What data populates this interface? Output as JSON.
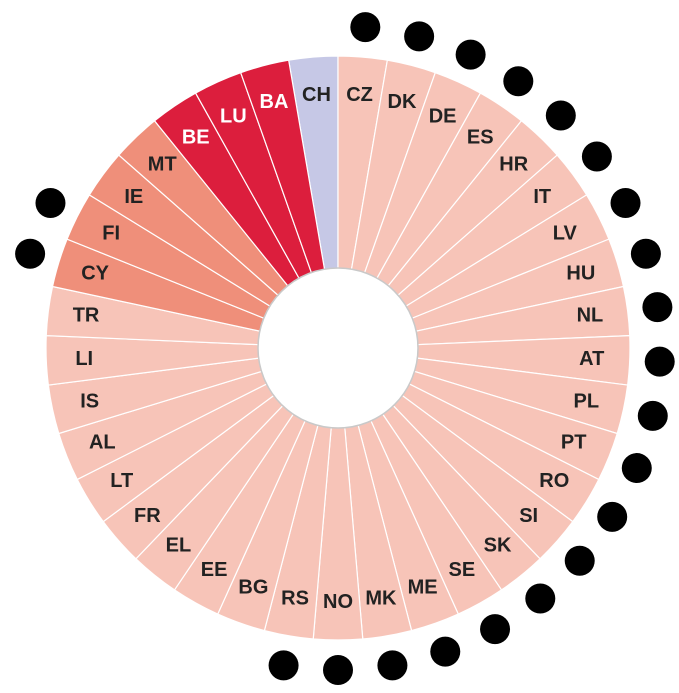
{
  "chart_data": {
    "type": "pie",
    "segments": [
      {
        "code": "CH",
        "group": "lilac"
      },
      {
        "code": "CZ",
        "group": "pale",
        "dot": true
      },
      {
        "code": "DK",
        "group": "pale",
        "dot": true
      },
      {
        "code": "DE",
        "group": "pale",
        "dot": true
      },
      {
        "code": "ES",
        "group": "pale",
        "dot": true
      },
      {
        "code": "HR",
        "group": "pale",
        "dot": true
      },
      {
        "code": "IT",
        "group": "pale",
        "dot": true
      },
      {
        "code": "LV",
        "group": "pale",
        "dot": true
      },
      {
        "code": "HU",
        "group": "pale",
        "dot": true
      },
      {
        "code": "NL",
        "group": "pale",
        "dot": true
      },
      {
        "code": "AT",
        "group": "pale",
        "dot": true
      },
      {
        "code": "PL",
        "group": "pale",
        "dot": true
      },
      {
        "code": "PT",
        "group": "pale",
        "dot": true
      },
      {
        "code": "RO",
        "group": "pale",
        "dot": true
      },
      {
        "code": "SI",
        "group": "pale",
        "dot": true
      },
      {
        "code": "SK",
        "group": "pale",
        "dot": true
      },
      {
        "code": "SE",
        "group": "pale",
        "dot": true
      },
      {
        "code": "ME",
        "group": "pale",
        "dot": true
      },
      {
        "code": "MK",
        "group": "pale",
        "dot": true
      },
      {
        "code": "NO",
        "group": "pale",
        "dot": true
      },
      {
        "code": "RS",
        "group": "pale",
        "dot": true
      },
      {
        "code": "BG",
        "group": "pale"
      },
      {
        "code": "EE",
        "group": "pale"
      },
      {
        "code": "EL",
        "group": "pale"
      },
      {
        "code": "FR",
        "group": "pale"
      },
      {
        "code": "LT",
        "group": "pale"
      },
      {
        "code": "AL",
        "group": "pale"
      },
      {
        "code": "IS",
        "group": "pale"
      },
      {
        "code": "LI",
        "group": "pale"
      },
      {
        "code": "TR",
        "group": "pale"
      },
      {
        "code": "CY",
        "group": "medium",
        "dot": true
      },
      {
        "code": "FI",
        "group": "medium",
        "dot": true
      },
      {
        "code": "IE",
        "group": "medium"
      },
      {
        "code": "MT",
        "group": "medium"
      },
      {
        "code": "BE",
        "group": "red"
      },
      {
        "code": "LU",
        "group": "red"
      },
      {
        "code": "BA",
        "group": "red"
      }
    ],
    "colors": {
      "lilac": "#c6c8e6",
      "pale": "#f7c4b8",
      "medium": "#ef8f7a",
      "red": "#dc1e3d",
      "divider": "#ffffff",
      "dot": "#000000"
    },
    "label_colors": {
      "lilac": "#222222",
      "pale": "#222222",
      "medium": "#222222",
      "red": "#ffffff"
    }
  }
}
